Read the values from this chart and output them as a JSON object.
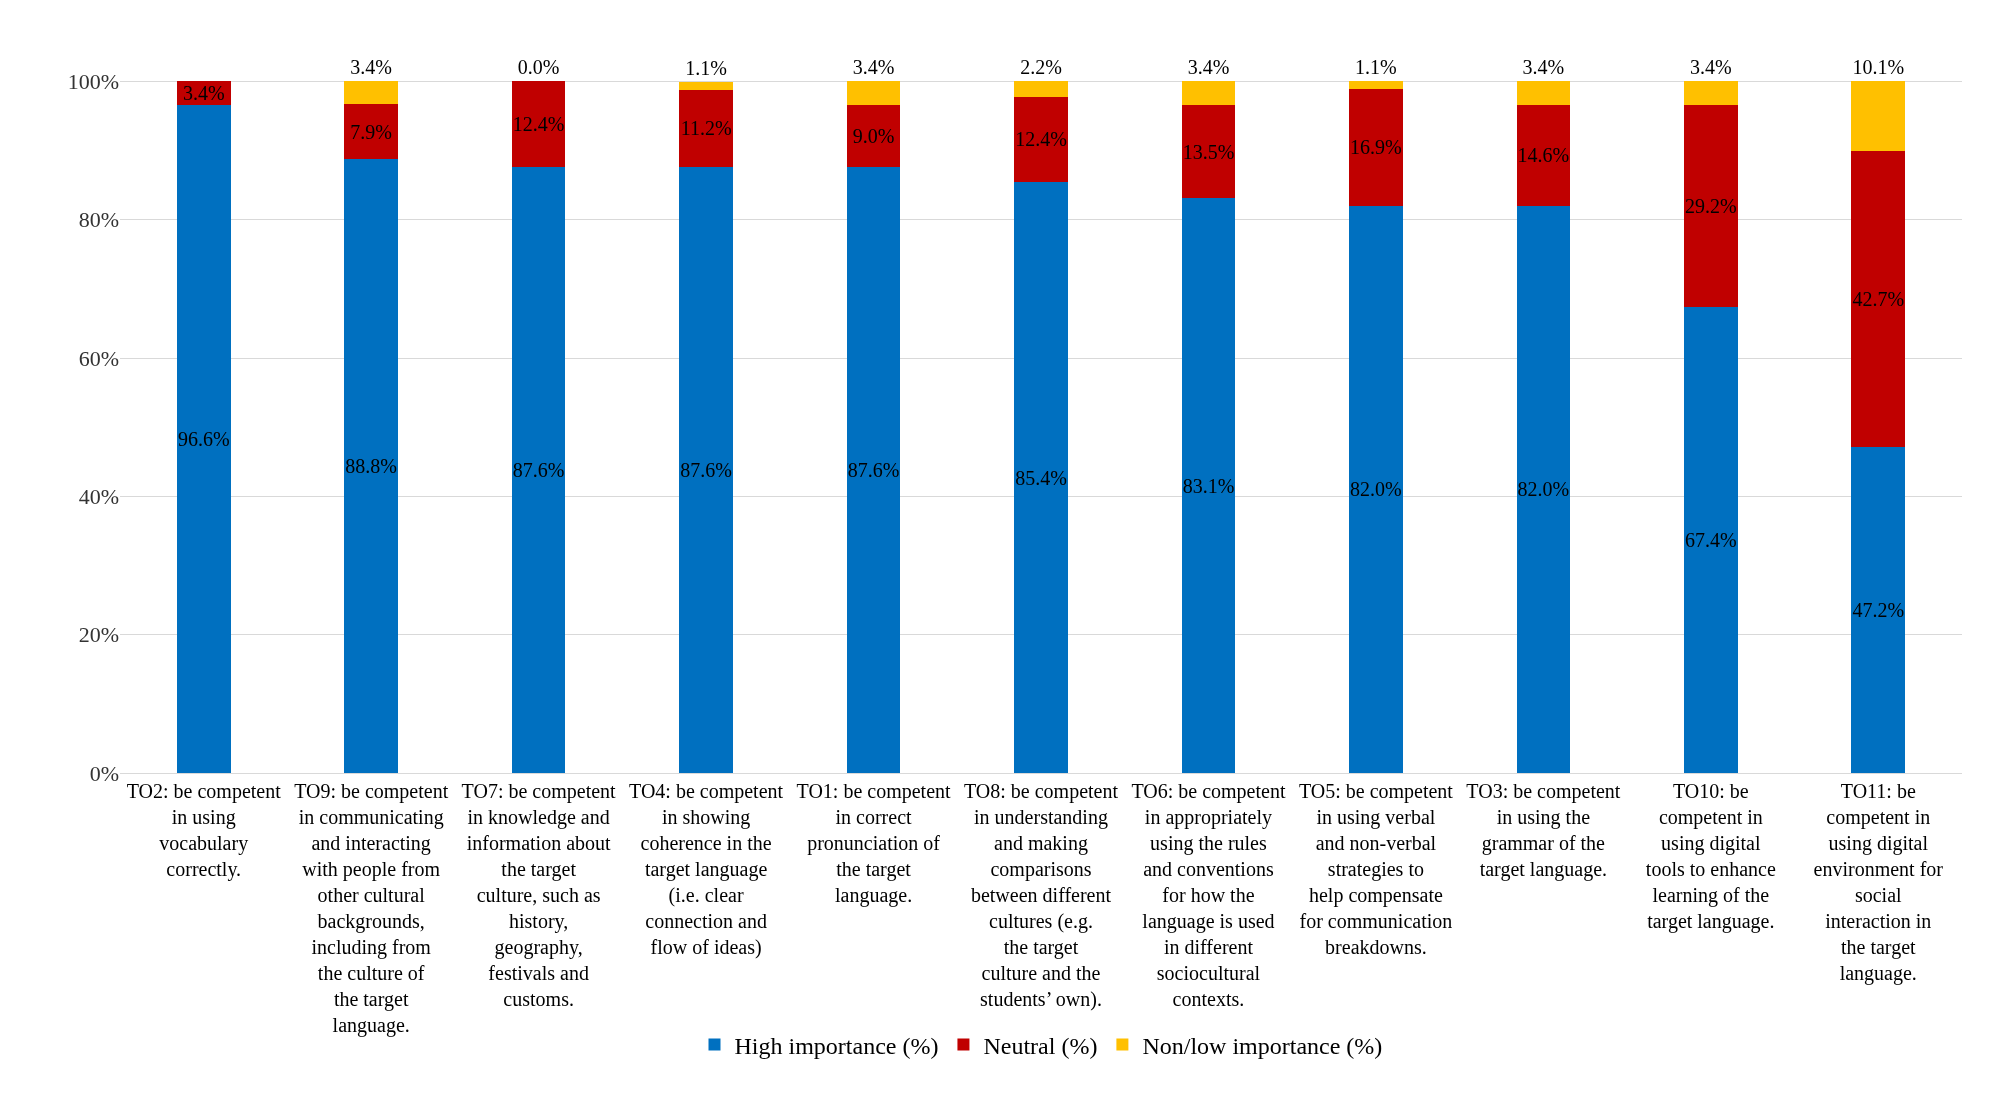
{
  "chart_data": {
    "type": "bar",
    "stacked": true,
    "categories": [
      "TO2: be competent in using vocabulary correctly.",
      "TO9: be competent in communicating and interacting with people from other cultural backgrounds, including from the culture of the target language.",
      "TO7: be competent in knowledge and information about the target culture, such as history, geography, festivals and customs.",
      "TO4: be competent in showing coherence in the target language (i.e. clear connection and flow of ideas)",
      "TO1: be competent in correct pronunciation of the target language.",
      "TO8: be competent in understanding and making comparisons between different cultures (e.g. the target culture and the students’ own).",
      "TO6: be competent in appropriately using the rules and conventions for how the language is used in different sociocultural contexts.",
      "TO5: be competent in using verbal and non-verbal strategies to help compensate for communication breakdowns.",
      "TO3: be competent in using the grammar of the target language.",
      "TO10: be competent in using digital tools to enhance learning of the target language.",
      "TO11: be competent in using digital environment for social interaction in the target language."
    ],
    "series": [
      {
        "name": "High importance (%)",
        "color": "#0070c0",
        "values": [
          96.6,
          88.8,
          87.6,
          87.6,
          87.6,
          85.4,
          83.1,
          82.0,
          82.0,
          67.4,
          47.2
        ],
        "value_labels": [
          "96.6%",
          "88.8%",
          "87.6%",
          "87.6%",
          "87.6%",
          "85.4%",
          "83.1%",
          "82.0%",
          "82.0%",
          "67.4%",
          "47.2%"
        ]
      },
      {
        "name": "Neutral (%)",
        "color": "#c00000",
        "values": [
          3.4,
          7.9,
          12.4,
          11.2,
          9.0,
          12.4,
          13.5,
          16.9,
          14.6,
          29.2,
          42.7
        ],
        "value_labels": [
          "3.4%",
          "7.9%",
          "12.4%",
          "11.2%",
          "9.0%",
          "12.4%",
          "13.5%",
          "16.9%",
          "14.6%",
          "29.2%",
          "42.7%"
        ]
      },
      {
        "name": "Non/low importance (%)",
        "color": "#ffc000",
        "values": [
          null,
          3.4,
          0.0,
          1.1,
          3.4,
          2.2,
          3.4,
          1.1,
          3.4,
          3.4,
          10.1
        ],
        "value_labels": [
          null,
          "3.4%",
          "0.0%",
          "1.1%",
          "3.4%",
          "2.2%",
          "3.4%",
          "1.1%",
          "3.4%",
          "3.4%",
          "10.1%"
        ]
      }
    ],
    "ylim": [
      0,
      100.2
    ],
    "yticks": [
      {
        "value": 0,
        "label": "0%"
      },
      {
        "value": 20,
        "label": "20%"
      },
      {
        "value": 40,
        "label": "40%"
      },
      {
        "value": 60,
        "label": "60%"
      },
      {
        "value": 80,
        "label": "80%"
      },
      {
        "value": 100,
        "label": "100%"
      }
    ],
    "grid": "y",
    "legend": "bottom"
  }
}
